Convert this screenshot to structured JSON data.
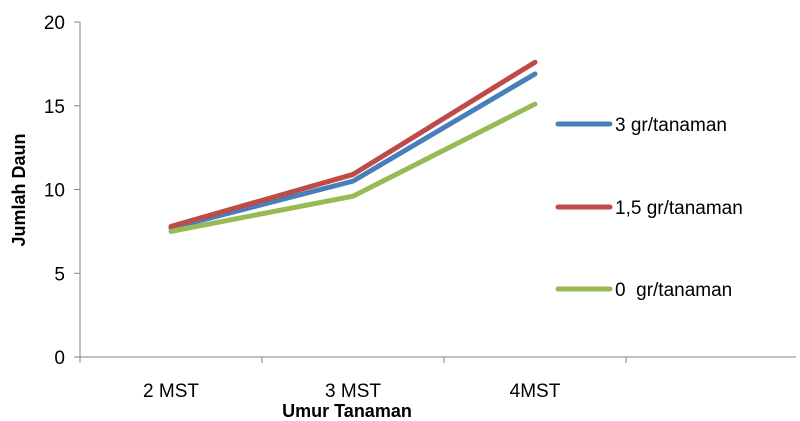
{
  "chart_data": {
    "type": "line",
    "categories": [
      "2 MST",
      "3 MST",
      "4MST"
    ],
    "series": [
      {
        "name": "3 gr/tanaman",
        "values": [
          7.7,
          10.5,
          16.9
        ],
        "color": "#4a7ebb"
      },
      {
        "name": "1,5 gr/tanaman",
        "values": [
          7.8,
          10.9,
          17.6
        ],
        "color": "#be4b48"
      },
      {
        "name": "0  gr/tanaman",
        "values": [
          7.5,
          9.6,
          15.1
        ],
        "color": "#98b954"
      }
    ],
    "xlabel": "Umur Tanaman",
    "ylabel": "Jumlah Daun",
    "ylim": [
      0,
      20
    ],
    "yticks": [
      0,
      5,
      10,
      15,
      20
    ],
    "grid": false,
    "legend_position": "right"
  }
}
